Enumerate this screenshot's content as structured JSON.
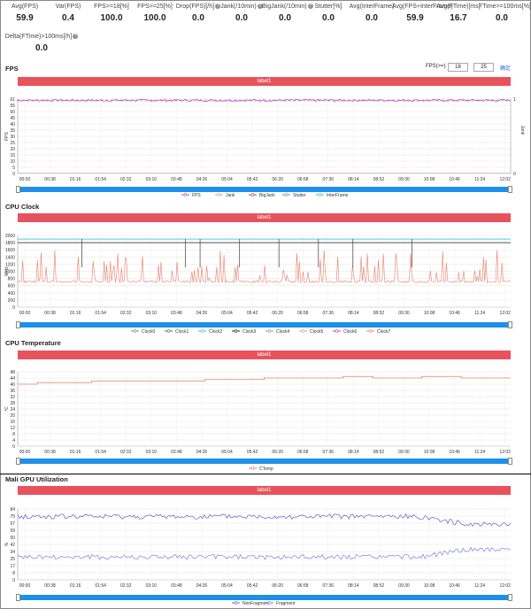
{
  "metrics": [
    {
      "label": "Avg(FPS)",
      "value": "59.9",
      "help": false
    },
    {
      "label": "Var(FPS)",
      "value": "0.4",
      "help": false
    },
    {
      "label": "FPS>=18[%]",
      "value": "100.0",
      "help": false
    },
    {
      "label": "FPS>=25[%]",
      "value": "100.0",
      "help": false
    },
    {
      "label": "Drop(FPS)[/h]",
      "value": "0.0",
      "help": true
    },
    {
      "label": "Jank(/10min)",
      "value": "0.0",
      "help": true
    },
    {
      "label": "BigJank(/10min)",
      "value": "0.0",
      "help": true
    },
    {
      "label": "Stutter[%]",
      "value": "0.0",
      "help": false
    },
    {
      "label": "Avg(InterFrame)",
      "value": "0.0",
      "help": false
    },
    {
      "label": "Avg(FPS+InterFrame)",
      "value": "59.9",
      "help": false
    },
    {
      "label": "Avg(FTime)[ms]",
      "value": "16.7",
      "help": false
    },
    {
      "label": "FTime>=100ms[%]",
      "value": "0.0",
      "help": false
    },
    {
      "label": "Delta(FTime)>100ms[/h]",
      "value": "0.0",
      "help": true
    }
  ],
  "help_icon": "?",
  "fps_control": {
    "label": "FPS(>=)",
    "val1": "18",
    "val2": "25",
    "link": "确定"
  },
  "charts": [
    {
      "key": "fps",
      "title": "FPS",
      "banner": "label1",
      "type": "line",
      "x_ticks": [
        "00:00",
        "00:38",
        "01:16",
        "01:54",
        "02:32",
        "03:10",
        "03:48",
        "04:26",
        "05:04",
        "05:42",
        "06:20",
        "06:58",
        "07:36",
        "08:14",
        "08:52",
        "09:30",
        "10:08",
        "10:46",
        "11:24",
        "12:02"
      ],
      "ylabel": "FPS",
      "y_ticks": [
        "61",
        "55",
        "50",
        "45",
        "40",
        "35",
        "30",
        "25",
        "20",
        "15",
        "10",
        "5",
        "0"
      ],
      "y2label": "Jank",
      "y2_ticks": [
        "1",
        "0"
      ],
      "legend": [
        {
          "name": "FPS",
          "color": "#c040c0"
        },
        {
          "name": "Jank",
          "color": "#e89c7a"
        },
        {
          "name": "BigJank",
          "color": "#a05050"
        },
        {
          "name": "Stutter",
          "color": "#7a8ab8"
        },
        {
          "name": "InterFrame",
          "color": "#40c0d0"
        }
      ],
      "series": [
        {
          "name": "FPS",
          "approx": 60,
          "range": [
            59,
            61
          ]
        }
      ]
    },
    {
      "key": "cpu",
      "title": "CPU Clock",
      "banner": "label1",
      "type": "line",
      "x_ticks": [
        "00:00",
        "00:38",
        "01:16",
        "01:54",
        "02:32",
        "03:10",
        "03:48",
        "04:26",
        "05:04",
        "05:42",
        "06:20",
        "06:58",
        "07:36",
        "08:14",
        "08:52",
        "09:30",
        "10:08",
        "10:46",
        "11:24",
        "12:02"
      ],
      "ylabel": "MHz",
      "y_ticks": [
        "2000",
        "1800",
        "1600",
        "1400",
        "1200",
        "1000",
        "800",
        "600",
        "400",
        "200",
        "0"
      ],
      "legend": [
        {
          "name": "Clock0",
          "color": "#808080"
        },
        {
          "name": "Clock1",
          "color": "#606060"
        },
        {
          "name": "Clock2",
          "color": "#40c0d0"
        },
        {
          "name": "Clock3",
          "color": "#202020"
        },
        {
          "name": "Clock4",
          "color": "#9090a0"
        },
        {
          "name": "Clock5",
          "color": "#e89c7a"
        },
        {
          "name": "Clock6",
          "color": "#c040c0"
        },
        {
          "name": "Clock7",
          "color": "#e8806a"
        }
      ],
      "series": [
        {
          "name": "Clock2",
          "approx": 1900
        },
        {
          "name": "Clock3",
          "approx": 1800
        },
        {
          "name": "Clock7",
          "approx": 700,
          "range": [
            650,
            1600
          ]
        }
      ]
    },
    {
      "key": "temp",
      "title": "CPU Temperature",
      "banner": "label1",
      "type": "line",
      "x_ticks": [
        "00:00",
        "00:38",
        "01:16",
        "01:54",
        "02:32",
        "03:10",
        "03:48",
        "04:26",
        "05:04",
        "05:42",
        "06:20",
        "06:58",
        "07:36",
        "08:14",
        "08:52",
        "09:30",
        "10:08",
        "10:46",
        "11:24",
        "12:02"
      ],
      "ylabel": "℃",
      "y_ticks": [
        "48",
        "44",
        "40",
        "36",
        "32",
        "28",
        "24",
        "20",
        "16",
        "12",
        "8",
        "4",
        "0"
      ],
      "legend": [
        {
          "name": "CTemp",
          "color": "#e8806a"
        }
      ],
      "series": [
        {
          "name": "CTemp",
          "steps": [
            [
              0,
              40
            ],
            [
              0.04,
              41
            ],
            [
              0.15,
              42
            ],
            [
              0.38,
              43
            ],
            [
              0.5,
              44
            ],
            [
              0.66,
              45
            ],
            [
              0.72,
              44
            ],
            [
              0.82,
              45
            ],
            [
              0.9,
              44
            ],
            [
              1.0,
              44
            ]
          ]
        }
      ]
    },
    {
      "key": "gpu",
      "title": "Mali GPU Utilization",
      "banner": "label1",
      "type": "line",
      "x_ticks": [
        "00:00",
        "00:38",
        "01:16",
        "01:54",
        "02:32",
        "03:10",
        "03:48",
        "04:26",
        "05:04",
        "05:42",
        "06:20",
        "06:58",
        "07:36",
        "08:14",
        "08:52",
        "09:30",
        "10:08",
        "10:46",
        "11:24",
        "12:02"
      ],
      "ylabel": "%",
      "y_ticks": [
        "84",
        "75",
        "67",
        "59",
        "50",
        "42",
        "34",
        "25",
        "17",
        "8",
        "0"
      ],
      "legend": [
        {
          "name": "NonFragment",
          "color": "#6060d0"
        },
        {
          "name": "Fragment",
          "color": "#8080e8"
        }
      ],
      "series": [
        {
          "name": "NonFragment",
          "approx": 75
        },
        {
          "name": "Fragment",
          "approx": 27
        }
      ]
    }
  ]
}
